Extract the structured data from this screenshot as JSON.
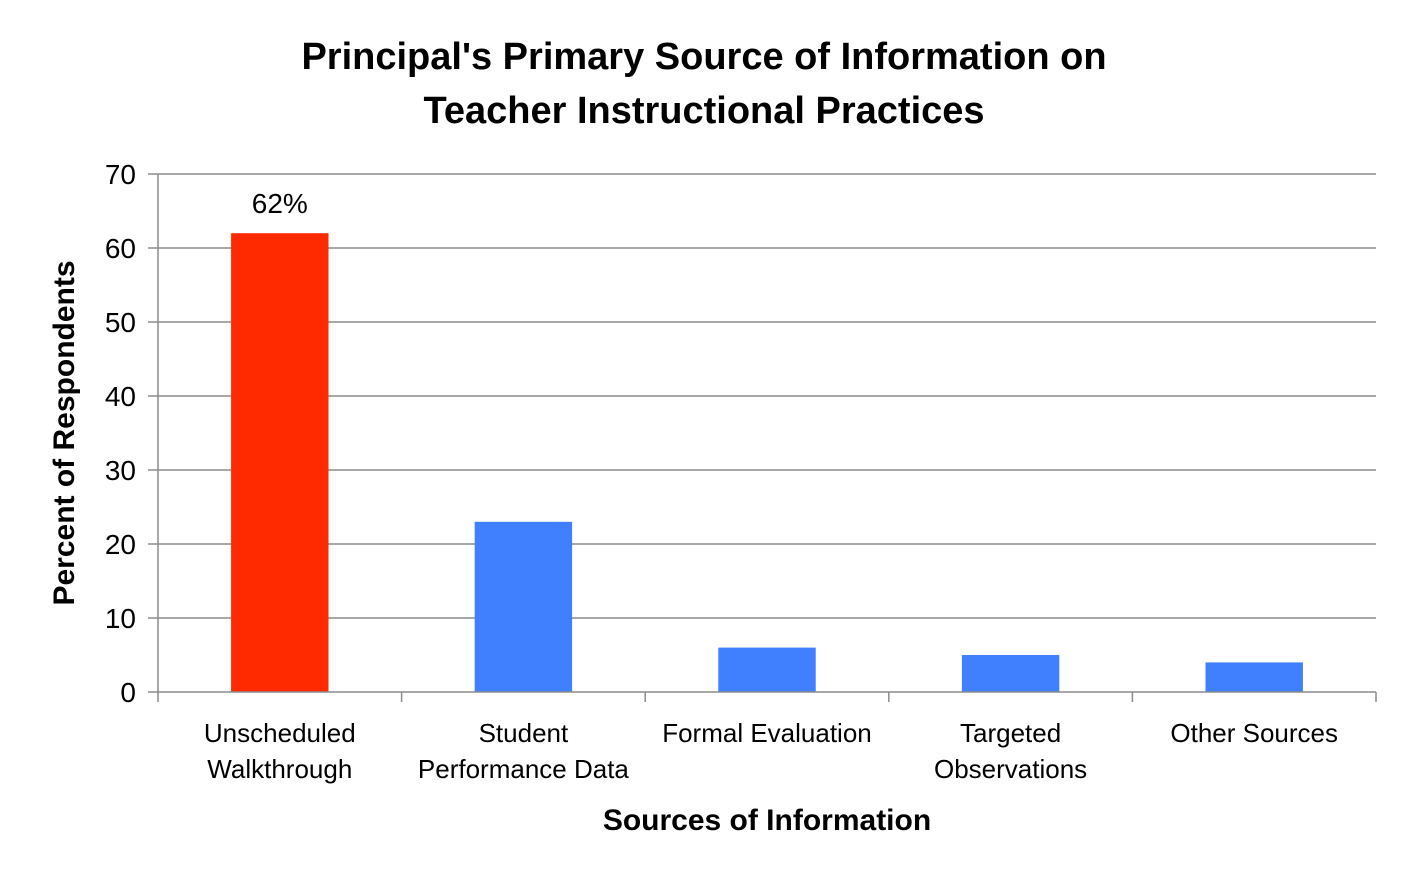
{
  "chart_data": {
    "type": "bar",
    "title_lines": [
      "Principal's Primary Source of Information on",
      "Teacher Instructional Practices"
    ],
    "xlabel": "Sources of Information",
    "ylabel": "Percent of Respondents",
    "ylim": [
      0,
      70
    ],
    "yticks": [
      0,
      10,
      20,
      30,
      40,
      50,
      60,
      70
    ],
    "grid": true,
    "categories": [
      [
        "Unscheduled",
        "Walkthrough"
      ],
      [
        "Student",
        "Performance Data"
      ],
      [
        "Formal Evaluation"
      ],
      [
        "Targeted",
        "Observations"
      ],
      [
        "Other Sources"
      ]
    ],
    "values": [
      62,
      23,
      6,
      5,
      4
    ],
    "colors": [
      "#ff2a00",
      "#4080ff",
      "#4080ff",
      "#4080ff",
      "#4080ff"
    ],
    "data_labels": [
      "62%",
      "",
      "",
      "",
      ""
    ]
  }
}
